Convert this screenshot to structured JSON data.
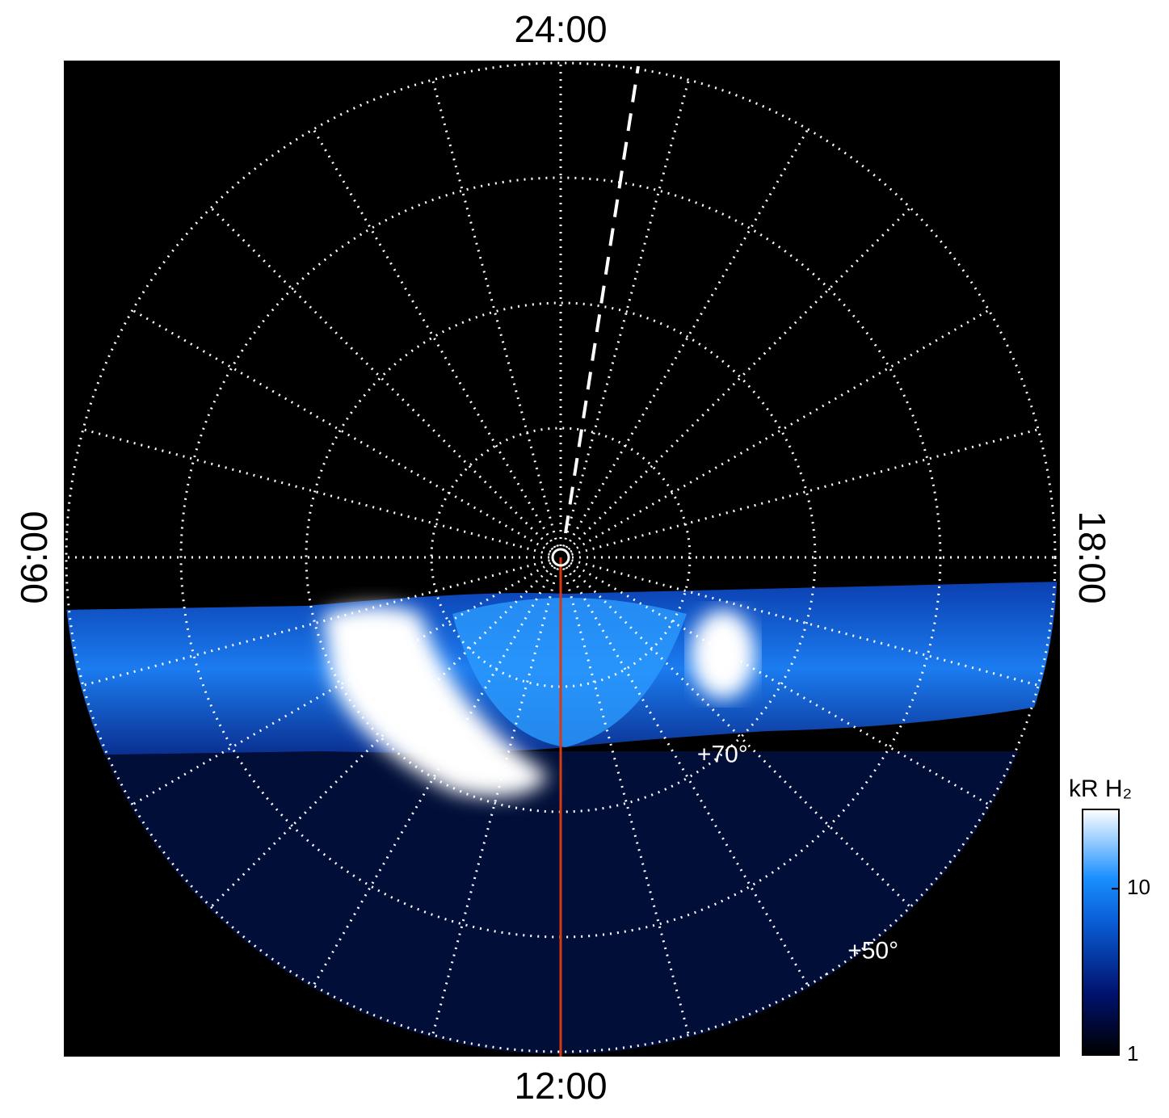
{
  "chart_data": {
    "type": "polar_image",
    "local_time_labels": [
      "24:00",
      "06:00",
      "12:00",
      "18:00"
    ],
    "latitude_labels": [
      {
        "value": 70,
        "label": "+70°"
      },
      {
        "value": 50,
        "label": "+50°"
      }
    ],
    "colorbar": {
      "label": "kR H₂",
      "lim": [
        1,
        30
      ],
      "ticks": [
        1,
        10
      ],
      "log": true
    }
  }
}
